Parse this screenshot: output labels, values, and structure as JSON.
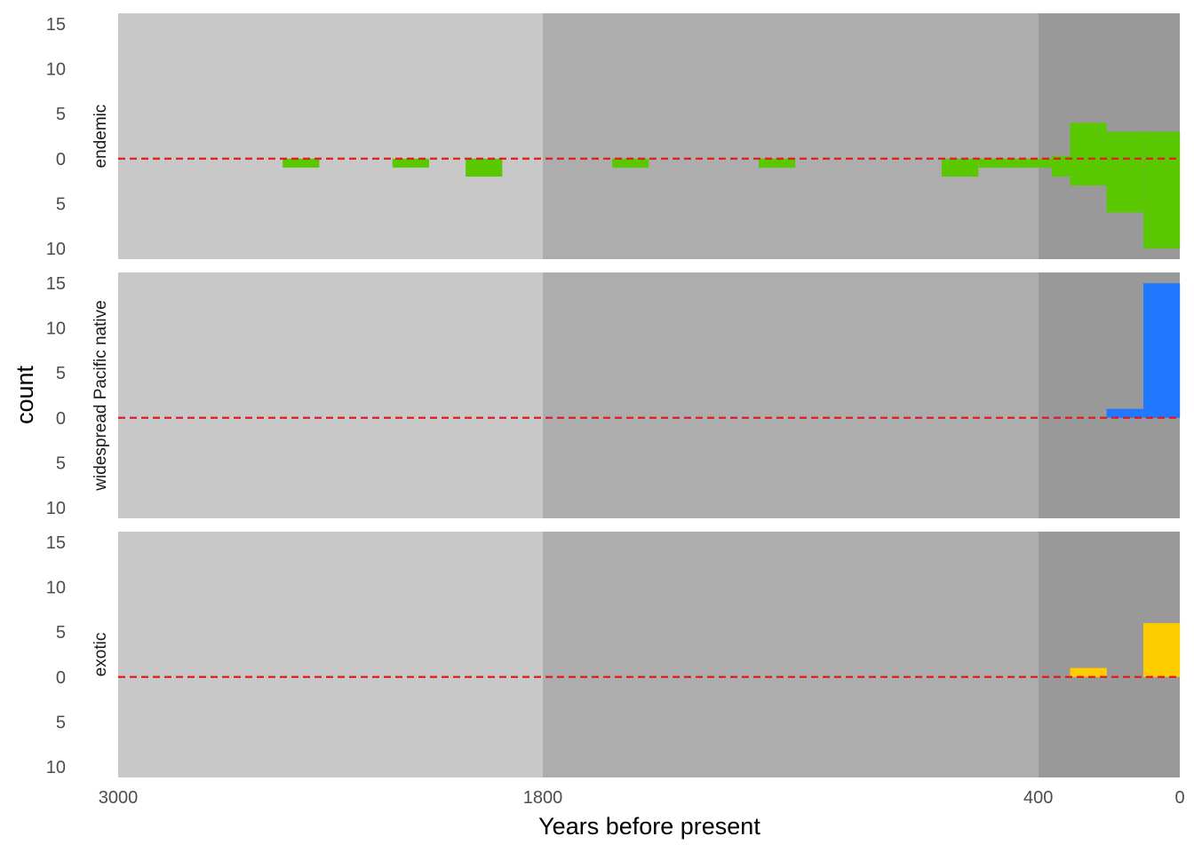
{
  "chart_data": {
    "type": "bar",
    "xlabel": "Years before present",
    "ylabel": "count",
    "x_ticks": [
      {
        "value": 3000,
        "label": "3000"
      },
      {
        "value": 1800,
        "label": "1800"
      },
      {
        "value": 400,
        "label": "400"
      },
      {
        "value": 0,
        "label": "0"
      }
    ],
    "y_ticks": [
      {
        "value": 15,
        "label": "15"
      },
      {
        "value": 10,
        "label": "10"
      },
      {
        "value": 5,
        "label": "5"
      },
      {
        "value": 0,
        "label": "0"
      },
      {
        "value": -5,
        "label": "5"
      },
      {
        "value": -10,
        "label": "10"
      }
    ],
    "xlim": [
      3000,
      0
    ],
    "x_reversed": true,
    "ylim": [
      -11.2,
      16.2
    ],
    "bin_width": 103.5,
    "reference_line": {
      "y": 0,
      "color": "#e41a1c",
      "style": "dashed"
    },
    "background_bands": [
      {
        "from": 3000,
        "to": 1800,
        "color": "#c8c8c8"
      },
      {
        "from": 1800,
        "to": 400,
        "color": "#adadad"
      },
      {
        "from": 400,
        "to": 0,
        "color": "#999999"
      }
    ],
    "panels": [
      {
        "name": "endemic",
        "color": "#59c800",
        "bars": [
          {
            "x": 2535,
            "value": -1
          },
          {
            "x": 2225,
            "value": -1
          },
          {
            "x": 2018,
            "value": -2
          },
          {
            "x": 1604,
            "value": -1
          },
          {
            "x": 1190,
            "value": -1
          },
          {
            "x": 673,
            "value": -2
          },
          {
            "x": 569,
            "value": -1
          },
          {
            "x": 466,
            "value": -1
          },
          {
            "x": 362,
            "value": -2
          },
          {
            "x": 362,
            "value": 0.3
          },
          {
            "x": 310,
            "value": 4
          },
          {
            "x": 310,
            "value": -3
          },
          {
            "x": 207,
            "value": 3
          },
          {
            "x": 207,
            "value": -6
          },
          {
            "x": 103,
            "value": 3
          },
          {
            "x": 103,
            "value": -10
          }
        ]
      },
      {
        "name": "widespread Pacific native",
        "color": "#1f78ff",
        "bars": [
          {
            "x": 207,
            "value": 1
          },
          {
            "x": 103,
            "value": 15
          }
        ]
      },
      {
        "name": "exotic",
        "color": "#ffcc00",
        "bars": [
          {
            "x": 310,
            "value": 1
          },
          {
            "x": 103,
            "value": 6
          }
        ]
      }
    ]
  }
}
